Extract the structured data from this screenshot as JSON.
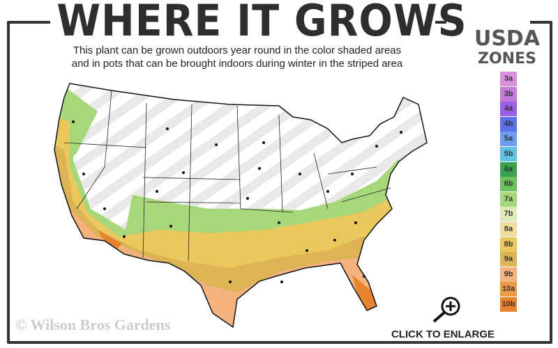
{
  "header": {
    "title": "WHERE IT GROWS",
    "subtitle_line1": "This plant can be grown outdoors year round in the color shaded areas",
    "subtitle_line2": "and in pots that can be brought indoors during winter in the striped area"
  },
  "legend": {
    "title_line1": "USDA",
    "title_line2": "ZONES",
    "zones": [
      {
        "label": "3a",
        "color": "#d98ee0"
      },
      {
        "label": "3b",
        "color": "#c47ad6"
      },
      {
        "label": "4a",
        "color": "#9a5fe6"
      },
      {
        "label": "4b",
        "color": "#5a72e6"
      },
      {
        "label": "5a",
        "color": "#6f9cf0"
      },
      {
        "label": "5b",
        "color": "#5ec4e2"
      },
      {
        "label": "6a",
        "color": "#3aa24e"
      },
      {
        "label": "6b",
        "color": "#6cc15a"
      },
      {
        "label": "7a",
        "color": "#a8d67a"
      },
      {
        "label": "7b",
        "color": "#dfeab8"
      },
      {
        "label": "8a",
        "color": "#f0dc9c"
      },
      {
        "label": "8b",
        "color": "#ebc85c"
      },
      {
        "label": "9a",
        "color": "#dcb355"
      },
      {
        "label": "9b",
        "color": "#f3b27e"
      },
      {
        "label": "10a",
        "color": "#ec9a45"
      },
      {
        "label": "10b",
        "color": "#e5832f"
      }
    ]
  },
  "footer": {
    "copyright": "© Wilson Bros Gardens",
    "enlarge_label": "CLICK TO ENLARGE"
  },
  "icons": {
    "enlarge": "magnifier-plus-icon"
  }
}
